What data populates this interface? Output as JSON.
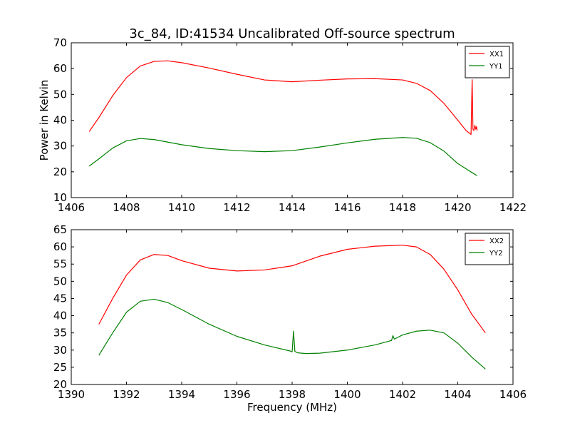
{
  "figure": {
    "title": "3c_84, ID:41534 Uncalibrated Off-source spectrum"
  },
  "chart_data": [
    {
      "type": "line",
      "title": "3c_84, ID:41534 Uncalibrated Off-source spectrum",
      "xlabel": "",
      "ylabel": "Power in Kelvin",
      "xlim": [
        1406,
        1422
      ],
      "ylim": [
        10,
        70
      ],
      "xticks": [
        1406,
        1408,
        1410,
        1412,
        1414,
        1416,
        1418,
        1420,
        1422
      ],
      "yticks": [
        10,
        20,
        30,
        40,
        50,
        60,
        70
      ],
      "grid": false,
      "legend": "top-right",
      "series": [
        {
          "name": "XX1",
          "color": "#ff0000",
          "x": [
            1406.65,
            1407.0,
            1407.5,
            1408.0,
            1408.5,
            1409.0,
            1409.5,
            1410.0,
            1411.0,
            1412.0,
            1413.0,
            1414.0,
            1415.0,
            1416.0,
            1417.0,
            1418.0,
            1418.5,
            1419.0,
            1419.5,
            1420.0,
            1420.3,
            1420.48,
            1420.52,
            1420.55,
            1420.58,
            1420.62,
            1420.65,
            1420.68,
            1420.7
          ],
          "y": [
            35.6,
            41.0,
            49.5,
            56.5,
            61.0,
            62.8,
            63.0,
            62.3,
            60.2,
            57.8,
            55.6,
            54.9,
            55.5,
            56.0,
            56.1,
            55.6,
            54.3,
            51.5,
            46.5,
            40.0,
            36.0,
            34.5,
            55.7,
            36.5,
            36.0,
            38.0,
            36.5,
            37.5,
            36.0
          ]
        },
        {
          "name": "YY1",
          "color": "#008000",
          "x": [
            1406.65,
            1407.0,
            1407.5,
            1408.0,
            1408.5,
            1409.0,
            1409.5,
            1410.0,
            1411.0,
            1412.0,
            1413.0,
            1414.0,
            1415.0,
            1416.0,
            1417.0,
            1418.0,
            1418.5,
            1419.0,
            1419.5,
            1420.0,
            1420.5,
            1420.7
          ],
          "y": [
            22.2,
            25.0,
            29.2,
            32.0,
            32.9,
            32.5,
            31.5,
            30.5,
            29.0,
            28.2,
            27.8,
            28.2,
            29.6,
            31.2,
            32.6,
            33.3,
            33.0,
            31.3,
            28.0,
            23.2,
            19.8,
            18.5
          ]
        }
      ]
    },
    {
      "type": "line",
      "title": "",
      "xlabel": "Frequency (MHz)",
      "ylabel": "",
      "xlim": [
        1390,
        1406
      ],
      "ylim": [
        20,
        65
      ],
      "xticks": [
        1390,
        1392,
        1394,
        1396,
        1398,
        1400,
        1402,
        1404,
        1406
      ],
      "yticks": [
        20,
        25,
        30,
        35,
        40,
        45,
        50,
        55,
        60,
        65
      ],
      "grid": false,
      "legend": "top-right",
      "series": [
        {
          "name": "XX2",
          "color": "#ff0000",
          "x": [
            1391.0,
            1391.5,
            1392.0,
            1392.5,
            1393.0,
            1393.5,
            1394.0,
            1395.0,
            1396.0,
            1397.0,
            1398.0,
            1399.0,
            1400.0,
            1401.0,
            1402.0,
            1402.5,
            1403.0,
            1403.5,
            1404.0,
            1404.5,
            1405.0
          ],
          "y": [
            37.5,
            45.0,
            51.8,
            56.2,
            57.8,
            57.5,
            56.0,
            53.8,
            53.0,
            53.3,
            54.5,
            57.3,
            59.3,
            60.2,
            60.5,
            60.0,
            57.8,
            53.5,
            47.5,
            40.5,
            35.0
          ]
        },
        {
          "name": "YY2",
          "color": "#008000",
          "x": [
            1391.0,
            1391.5,
            1392.0,
            1392.5,
            1393.0,
            1393.5,
            1394.0,
            1395.0,
            1396.0,
            1397.0,
            1397.9,
            1398.0,
            1398.05,
            1398.1,
            1398.2,
            1398.5,
            1399.0,
            1400.0,
            1401.0,
            1401.6,
            1401.65,
            1401.7,
            1402.0,
            1402.5,
            1403.0,
            1403.5,
            1404.0,
            1404.5,
            1405.0
          ],
          "y": [
            28.5,
            35.0,
            41.0,
            44.2,
            44.8,
            43.8,
            41.8,
            37.5,
            34.0,
            31.5,
            29.8,
            29.5,
            35.5,
            29.6,
            29.2,
            29.0,
            29.1,
            30.0,
            31.5,
            32.8,
            34.2,
            33.2,
            34.4,
            35.5,
            35.8,
            35.0,
            32.0,
            28.0,
            24.5
          ]
        }
      ]
    }
  ]
}
